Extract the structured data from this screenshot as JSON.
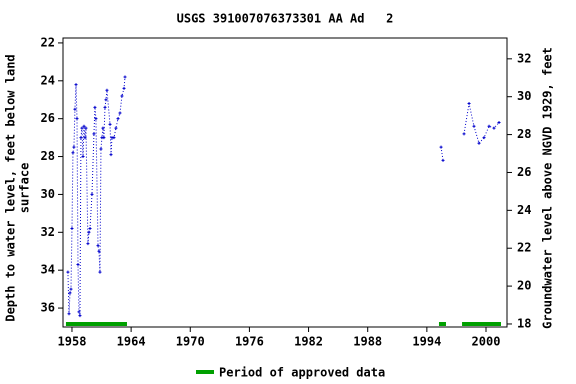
{
  "chart_data": {
    "type": "line",
    "title": "USGS 391007076373301 AA Ad   2",
    "ylabel": [
      "Depth to water level, feet below land",
      "surface"
    ],
    "y2label": "Groundwater level above NGVD 1929, feet",
    "x": [
      1957.59,
      1957.7,
      1957.8,
      1957.9,
      1958.0,
      1958.1,
      1958.2,
      1958.3,
      1958.41,
      1958.51,
      1958.61,
      1958.71,
      1958.81,
      1958.91,
      1959.01,
      1959.12,
      1959.22,
      1959.32,
      1959.42,
      1959.62,
      1959.72,
      1959.83,
      1960.03,
      1960.23,
      1960.33,
      1960.43,
      1960.64,
      1960.74,
      1960.84,
      1960.94,
      1961.04,
      1961.14,
      1961.24,
      1961.35,
      1961.45,
      1961.55,
      1961.86,
      1961.96,
      1962.06,
      1962.26,
      1962.46,
      1962.67,
      1962.87,
      1963.07,
      1963.28,
      1963.38,
      null,
      1995.44,
      1995.64,
      null,
      1997.77,
      1998.28,
      1998.78,
      1999.29,
      1999.8,
      2000.31,
      2000.81,
      2001.32
    ],
    "series": [
      {
        "name": "Depth to water level",
        "color": "#0000cc",
        "values": [
          34.1,
          36.3,
          35.2,
          35,
          31.8,
          27.8,
          27.5,
          25.5,
          24.2,
          26,
          33.7,
          36.2,
          36.4,
          27,
          26.5,
          28,
          26.4,
          27,
          26.5,
          32.6,
          32,
          31.8,
          30,
          26.8,
          25.4,
          26,
          32.7,
          33,
          34.1,
          27.6,
          27,
          26.5,
          27,
          25.4,
          25,
          24.5,
          26.3,
          27.9,
          27,
          27,
          26.5,
          26,
          25.7,
          24.8,
          24.4,
          23.8,
          null,
          27.5,
          28.2,
          null,
          26.8,
          25.2,
          26.4,
          27.3,
          27,
          26.4,
          26.5,
          26.2
        ]
      }
    ],
    "approved_periods": {
      "name": "Period of approved data",
      "color": "#00a000",
      "ranges": [
        [
          1957.39,
          1963.58
        ],
        [
          1995.23,
          1995.94
        ],
        [
          1997.57,
          2001.52
        ]
      ]
    },
    "xlim": [
      1957.09,
      2002.13
    ],
    "xticks": [
      1958,
      1964,
      1970,
      1976,
      1982,
      1988,
      1994,
      2000
    ],
    "ylim": [
      37.0,
      21.74
    ],
    "yticks": [
      22,
      24,
      26,
      28,
      30,
      32,
      34,
      36
    ],
    "y2lim": [
      17.84,
      33.1
    ],
    "y2ticks": [
      18,
      20,
      22,
      24,
      26,
      28,
      30,
      32
    ]
  }
}
